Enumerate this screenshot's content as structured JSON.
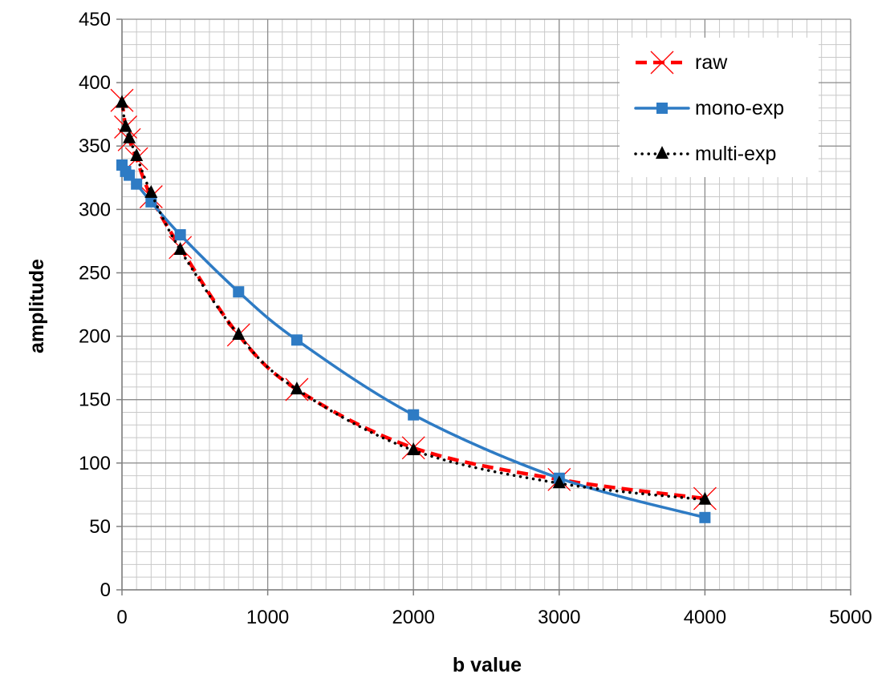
{
  "chart_data": {
    "type": "line",
    "title": "",
    "xlabel": "b value",
    "ylabel": "amplitude",
    "xlim": [
      0,
      5000
    ],
    "ylim": [
      0,
      450
    ],
    "x_ticks": [
      0,
      1000,
      2000,
      3000,
      4000,
      5000
    ],
    "y_ticks": [
      0,
      50,
      100,
      150,
      200,
      250,
      300,
      350,
      400,
      450
    ],
    "minor_x_step": 100,
    "minor_y_step": 10,
    "grid": true,
    "legend_position": "top-right",
    "series": [
      {
        "name": "raw",
        "color": "#ff0000",
        "line_style": "dashed",
        "marker": "x",
        "x": [
          0,
          25,
          50,
          100,
          200,
          400,
          800,
          1200,
          2000,
          3000,
          4000
        ],
        "y": [
          386,
          365,
          355,
          340,
          310,
          270,
          201,
          158,
          112,
          87,
          72
        ]
      },
      {
        "name": "mono-exp",
        "color": "#2e7bc4",
        "line_style": "solid",
        "marker": "square",
        "x": [
          0,
          25,
          50,
          100,
          200,
          400,
          800,
          1200,
          2000,
          3000,
          4000
        ],
        "y": [
          335,
          330,
          327,
          320,
          306,
          280,
          235,
          197,
          138,
          88,
          57
        ]
      },
      {
        "name": "multi-exp",
        "color": "#000000",
        "line_style": "dotted",
        "marker": "triangle",
        "x": [
          0,
          25,
          50,
          100,
          200,
          400,
          800,
          1200,
          2000,
          3000,
          4000
        ],
        "y": [
          384,
          365,
          356,
          342,
          313,
          268,
          201,
          158,
          110,
          84,
          71
        ]
      }
    ]
  }
}
